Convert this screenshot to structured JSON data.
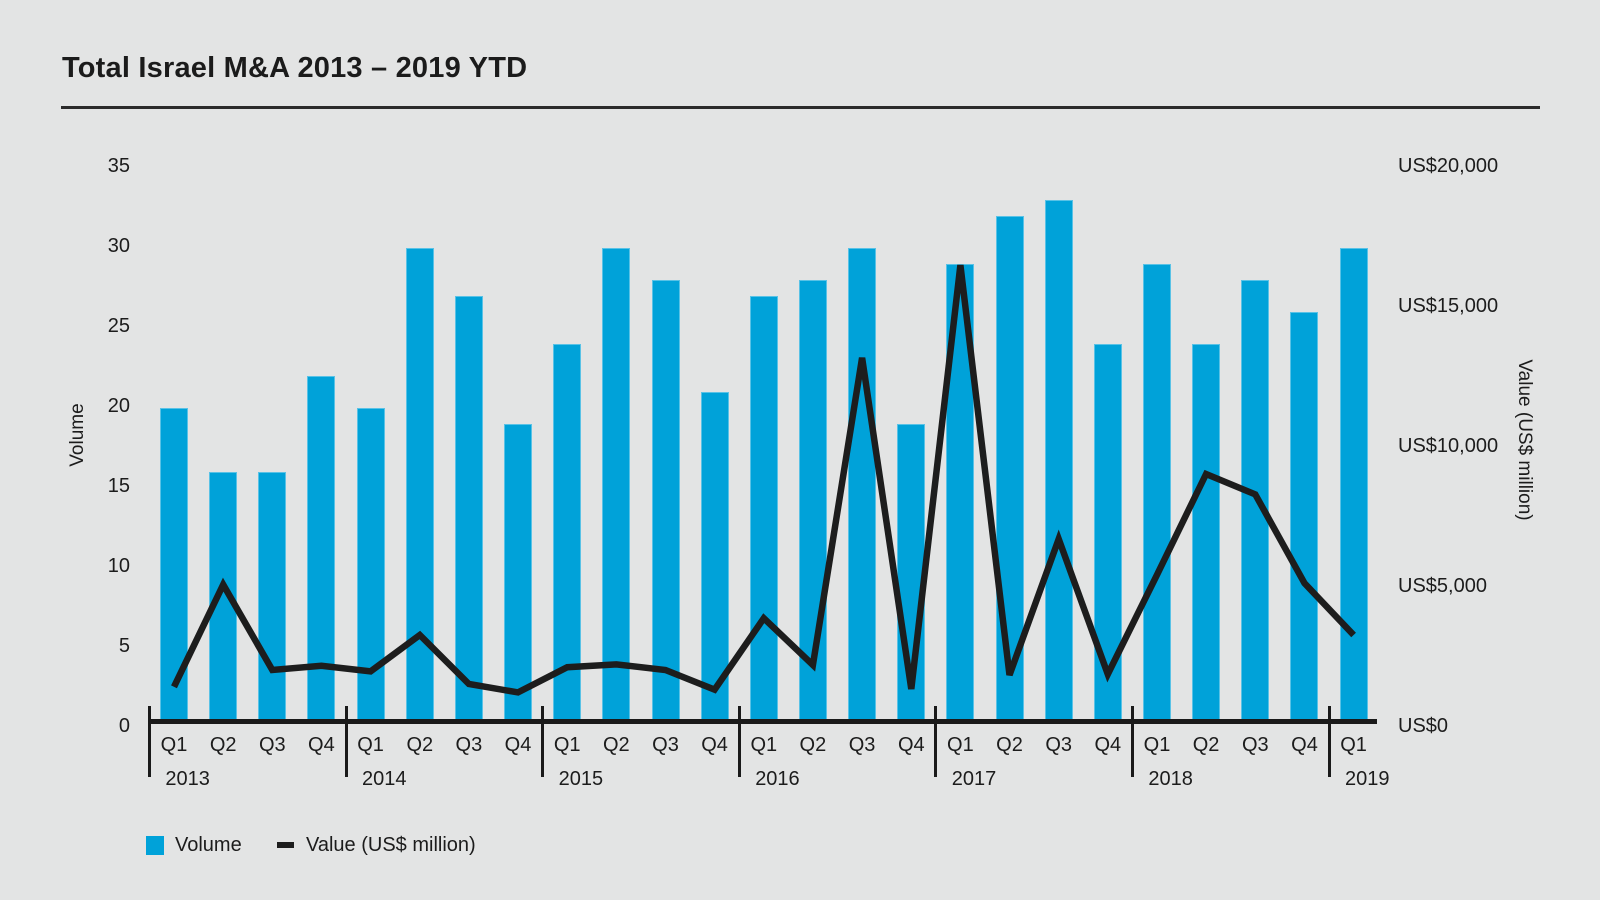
{
  "title": "Total Israel M&A 2013 – 2019 YTD",
  "colors": {
    "background": "#e3e4e4",
    "bar": "#00a2d9",
    "line": "#1d1d1d",
    "text": "#1c1c1c",
    "axis": "#1a1a1a"
  },
  "left_axis": {
    "label": "Volume",
    "ticks": [
      0,
      5,
      10,
      15,
      20,
      25,
      30,
      35
    ]
  },
  "right_axis": {
    "label": "Value (US$ million)",
    "ticks": [
      "US$0",
      "US$5,000",
      "US$10,000",
      "US$15,000",
      "US$20,000"
    ],
    "tick_values": [
      0,
      5000,
      10000,
      15000,
      20000
    ]
  },
  "legend": {
    "volume_label": "Volume",
    "value_label": "Value (US$ million)"
  },
  "chart_data": {
    "type": "bar",
    "subtype": "bar+line dual axis",
    "title": "Total Israel M&A 2013 – 2019 YTD",
    "years": [
      {
        "year": "2013",
        "quarters": [
          "Q1",
          "Q2",
          "Q3",
          "Q4"
        ]
      },
      {
        "year": "2014",
        "quarters": [
          "Q1",
          "Q2",
          "Q3",
          "Q4"
        ]
      },
      {
        "year": "2015",
        "quarters": [
          "Q1",
          "Q2",
          "Q3",
          "Q4"
        ]
      },
      {
        "year": "2016",
        "quarters": [
          "Q1",
          "Q2",
          "Q3",
          "Q4"
        ]
      },
      {
        "year": "2017",
        "quarters": [
          "Q1",
          "Q2",
          "Q3",
          "Q4"
        ]
      },
      {
        "year": "2018",
        "quarters": [
          "Q1",
          "Q2",
          "Q3",
          "Q4"
        ]
      },
      {
        "year": "2019",
        "quarters": [
          "Q1"
        ]
      }
    ],
    "series": [
      {
        "name": "Volume",
        "type": "bar",
        "axis": "left",
        "values": [
          20,
          16,
          16,
          22,
          20,
          30,
          27,
          19,
          24,
          30,
          28,
          21,
          27,
          28,
          30,
          19,
          29,
          32,
          33,
          24,
          29,
          24,
          28,
          26,
          30
        ]
      },
      {
        "name": "Value (US$ million)",
        "type": "line",
        "axis": "right",
        "values": [
          1400,
          5050,
          2000,
          2150,
          1950,
          3250,
          1500,
          1200,
          2100,
          2200,
          2000,
          1300,
          3850,
          2180,
          13150,
          1320,
          16460,
          1820,
          6680,
          1850,
          5400,
          9000,
          8270,
          5100,
          3250
        ]
      }
    ],
    "left_ylim": [
      0,
      35
    ],
    "right_ylim": [
      0,
      20000
    ],
    "grid": false,
    "legend_position": "bottom-left"
  }
}
